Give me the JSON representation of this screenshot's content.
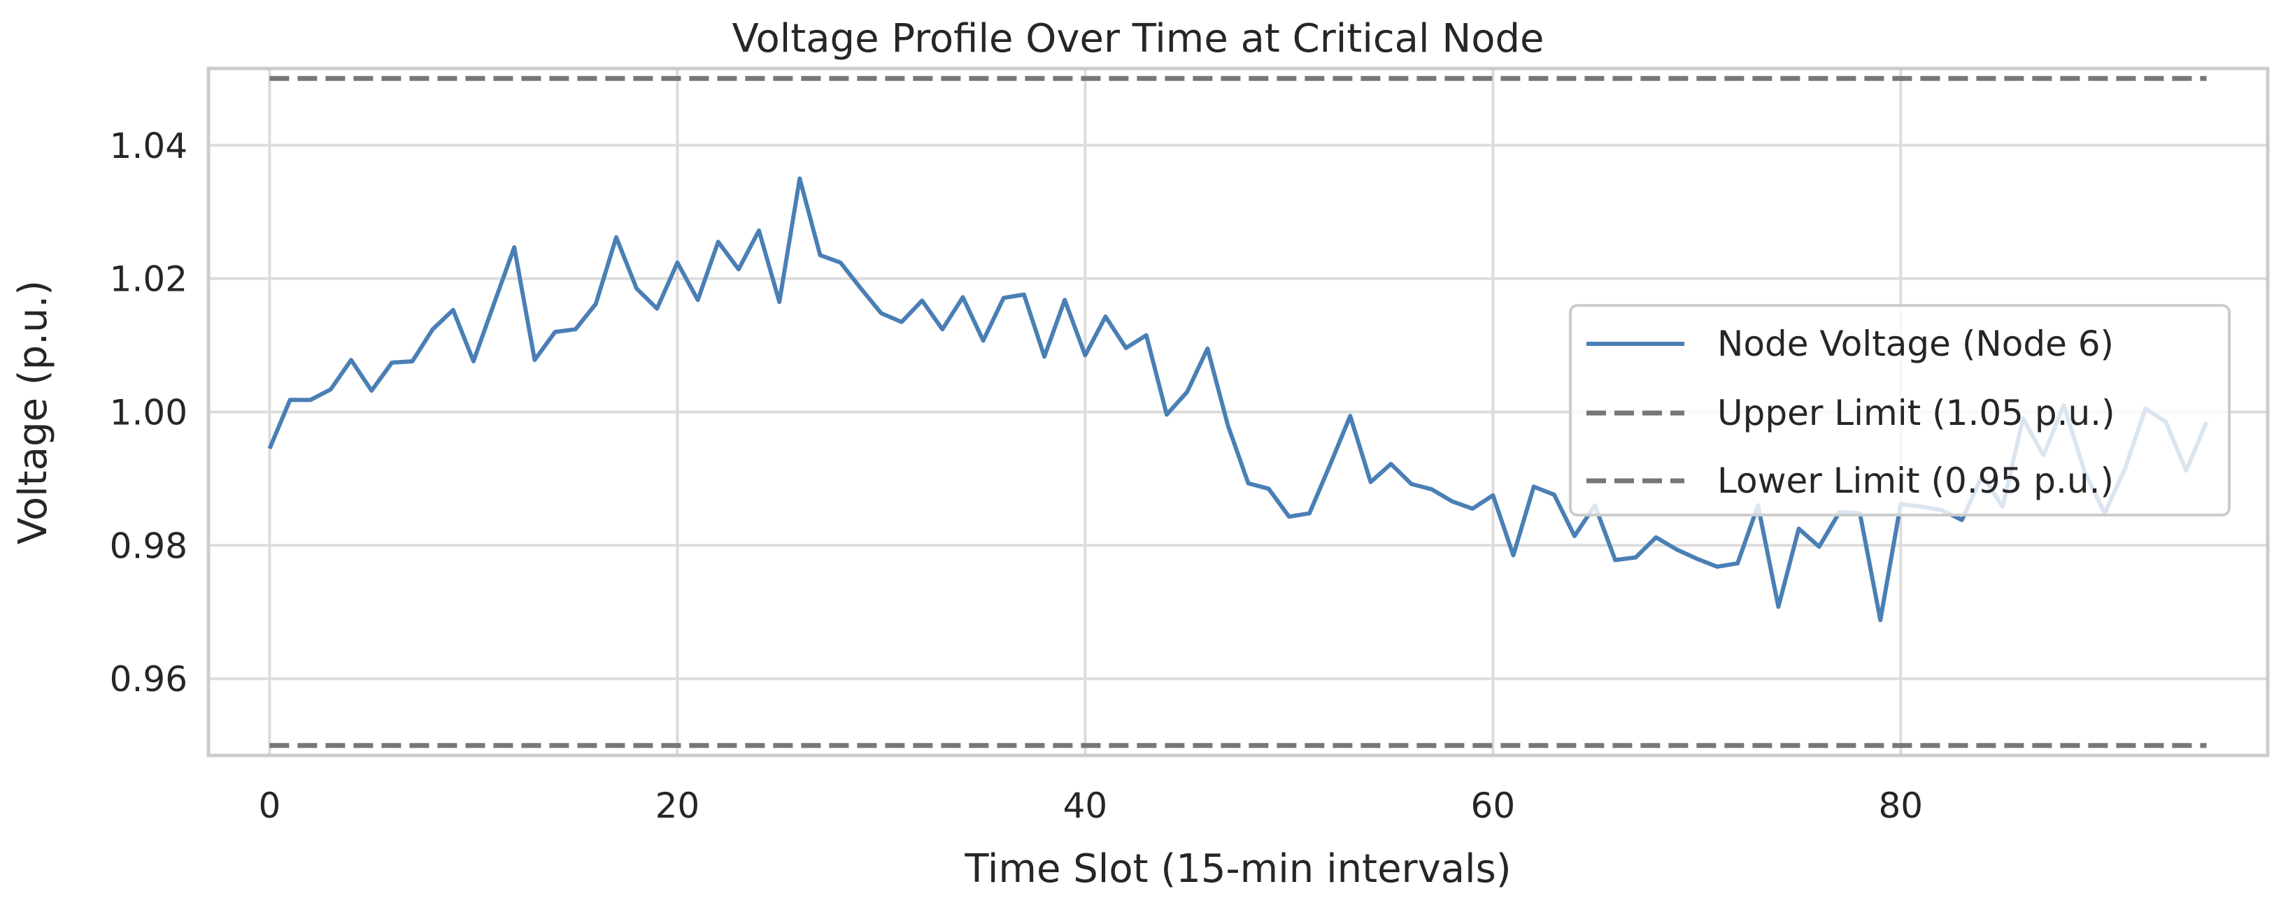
{
  "chart_data": {
    "type": "line",
    "title": "Voltage Profile Over Time at Critical Node",
    "xlabel": "Time Slot (15-min intervals)",
    "ylabel": "Voltage (p.u.)",
    "xlim": [
      -3,
      98
    ],
    "ylim": [
      0.9485,
      1.0515
    ],
    "xticks": [
      0,
      20,
      40,
      60,
      80
    ],
    "yticks": [
      0.96,
      0.98,
      1.0,
      1.02,
      1.04
    ],
    "ytick_labels": [
      "0.96",
      "0.98",
      "1.00",
      "1.02",
      "1.04"
    ],
    "grid": true,
    "legend_position": "center-right",
    "series": [
      {
        "name": "Node Voltage (Node 6)",
        "color": "#4a7fb5",
        "style": "solid",
        "x": [
          0,
          1,
          2,
          3,
          4,
          5,
          6,
          7,
          8,
          9,
          10,
          11,
          12,
          13,
          14,
          15,
          16,
          17,
          18,
          19,
          20,
          21,
          22,
          23,
          24,
          25,
          26,
          27,
          28,
          29,
          30,
          31,
          32,
          33,
          34,
          35,
          36,
          37,
          38,
          39,
          40,
          41,
          42,
          43,
          44,
          45,
          46,
          47,
          48,
          49,
          50,
          51,
          52,
          53,
          54,
          55,
          56,
          57,
          58,
          59,
          60,
          61,
          62,
          63,
          64,
          65,
          66,
          67,
          68,
          69,
          70,
          71,
          72,
          73,
          74,
          75,
          76,
          77,
          78,
          79,
          80,
          81,
          82,
          83,
          84,
          85,
          86,
          87,
          88,
          89,
          90,
          91,
          92,
          93,
          94,
          95
        ],
        "y": [
          0.9945,
          1.0018,
          1.0018,
          1.0034,
          1.0078,
          1.0032,
          1.0074,
          1.0076,
          1.0124,
          1.0153,
          1.0076,
          1.0162,
          1.0247,
          1.0078,
          1.012,
          1.0124,
          1.0162,
          1.0262,
          1.0185,
          1.0155,
          1.0224,
          1.0168,
          1.0255,
          1.0214,
          1.0272,
          1.0165,
          1.035,
          1.0235,
          1.0224,
          1.0185,
          1.0148,
          1.0135,
          1.0167,
          1.0124,
          1.0172,
          1.0107,
          1.0171,
          1.0176,
          1.0083,
          1.0168,
          1.0085,
          1.0143,
          1.0096,
          1.0115,
          0.9996,
          1.003,
          1.0095,
          0.998,
          0.9893,
          0.9885,
          0.9843,
          0.9848,
          0.992,
          0.9994,
          0.9895,
          0.9922,
          0.9892,
          0.9884,
          0.9866,
          0.9855,
          0.9875,
          0.9785,
          0.9888,
          0.9876,
          0.9814,
          0.986,
          0.9778,
          0.9782,
          0.9812,
          0.9794,
          0.978,
          0.9768,
          0.9773,
          0.986,
          0.9708,
          0.9825,
          0.9798,
          0.985,
          0.9848,
          0.9688,
          0.9862,
          0.9858,
          0.9853,
          0.9838,
          0.9905,
          0.9858,
          0.999,
          0.9935,
          1.001,
          0.9912,
          0.9848,
          0.9915,
          1.0005,
          0.9985,
          0.9912,
          0.9985
        ]
      },
      {
        "name": "Upper Limit (1.05 p.u.)",
        "color": "#777777",
        "style": "dashed",
        "x": [
          0,
          95
        ],
        "y": [
          1.05,
          1.05
        ]
      },
      {
        "name": "Lower Limit (0.95 p.u.)",
        "color": "#777777",
        "style": "dashed",
        "x": [
          0,
          95
        ],
        "y": [
          0.95,
          0.95
        ]
      }
    ]
  }
}
